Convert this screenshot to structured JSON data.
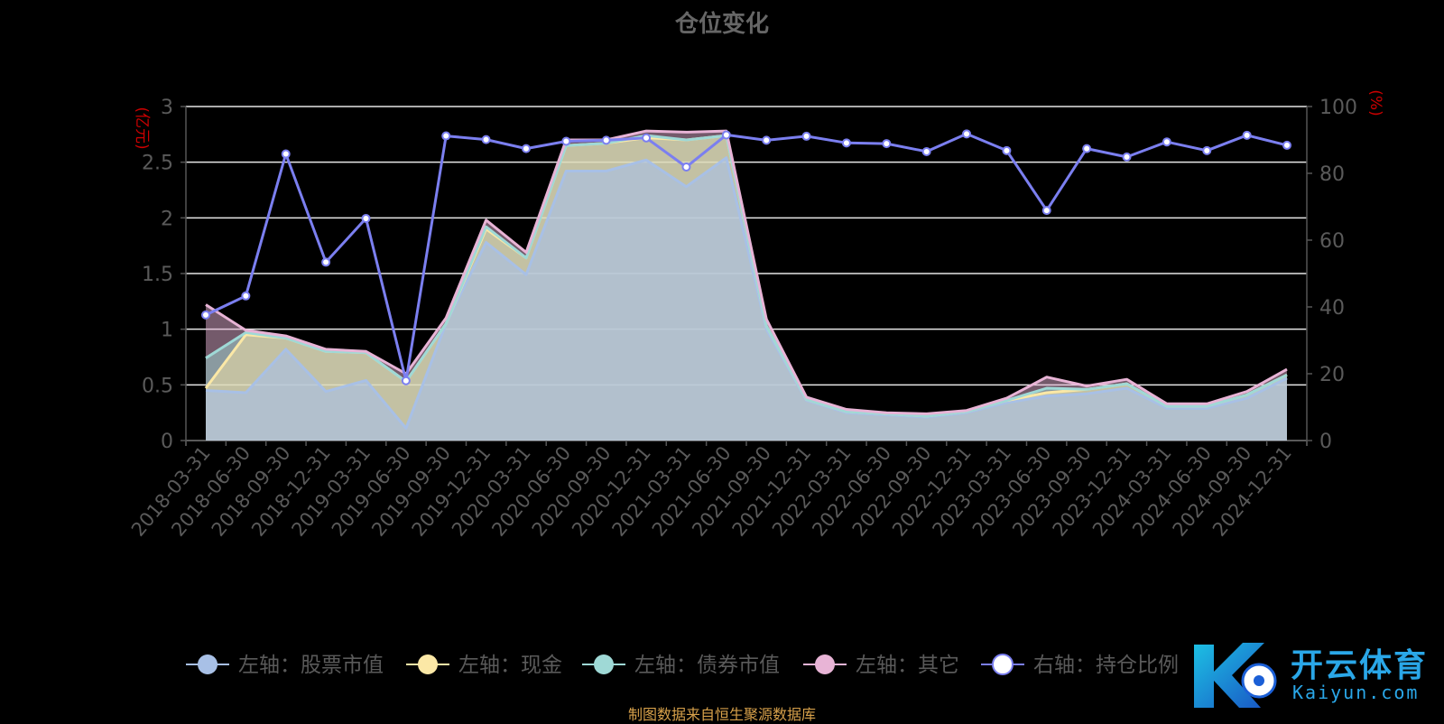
{
  "title": "仓位变化",
  "footer": "制图数据来自恒生聚源数据库",
  "watermark": {
    "cn": "开云体育",
    "en": "Kaiyun.com"
  },
  "colors": {
    "stock": "#a8c0e6",
    "cash": "#fbe8a6",
    "bond": "#9fd9d6",
    "other": "#e8b4d6",
    "ratio": "#7b7ff0",
    "axis_unit": "#cc0000",
    "axis_text": "#5a5a5a"
  },
  "chart_data": {
    "type": "area",
    "categories": [
      "2018-03-31",
      "2018-06-30",
      "2018-09-30",
      "2018-12-31",
      "2019-03-31",
      "2019-06-30",
      "2019-09-30",
      "2019-12-31",
      "2020-03-31",
      "2020-06-30",
      "2020-09-30",
      "2020-12-31",
      "2021-03-31",
      "2021-06-30",
      "2021-09-30",
      "2021-12-31",
      "2022-03-31",
      "2022-06-30",
      "2022-09-30",
      "2022-12-31",
      "2023-03-31",
      "2023-06-30",
      "2023-09-30",
      "2023-12-31",
      "2024-03-31",
      "2024-06-30",
      "2024-09-30",
      "2024-12-31"
    ],
    "left_axis": {
      "unit": "(亿元)",
      "min": 0,
      "max": 3,
      "ticks": [
        "0",
        "0.5",
        "1",
        "1.5",
        "2",
        "2.5",
        "3"
      ]
    },
    "right_axis": {
      "unit": "(%)",
      "min": 0,
      "max": 100,
      "ticks": [
        "0",
        "20",
        "40",
        "60",
        "80",
        "100"
      ]
    },
    "series": [
      {
        "name": "左轴：股票市值",
        "axis": "left",
        "stack": true,
        "values": [
          0.45,
          0.43,
          0.82,
          0.44,
          0.54,
          0.11,
          1.05,
          1.78,
          1.49,
          2.42,
          2.42,
          2.52,
          2.28,
          2.54,
          1.0,
          0.36,
          0.25,
          0.23,
          0.21,
          0.25,
          0.34,
          0.4,
          0.42,
          0.47,
          0.29,
          0.29,
          0.38,
          0.56
        ]
      },
      {
        "name": "左轴：现金",
        "axis": "left",
        "stack": true,
        "values": [
          0.02,
          0.52,
          0.1,
          0.36,
          0.25,
          0.42,
          0.0,
          0.12,
          0.15,
          0.23,
          0.25,
          0.2,
          0.42,
          0.2,
          0.03,
          0.01,
          0.01,
          0.01,
          0.01,
          0.01,
          0.02,
          0.03,
          0.04,
          0.04,
          0.02,
          0.02,
          0.03,
          0.03
        ]
      },
      {
        "name": "左轴：债券市值",
        "axis": "left",
        "stack": true,
        "values": [
          0.27,
          0.02,
          0.0,
          0.0,
          0.0,
          0.0,
          0.0,
          0.02,
          0.0,
          0.0,
          0.0,
          0.02,
          0.0,
          0.0,
          0.0,
          0.0,
          0.0,
          0.0,
          0.0,
          0.0,
          0.0,
          0.04,
          0.0,
          0.0,
          0.0,
          0.0,
          0.0,
          0.0
        ]
      },
      {
        "name": "左轴：其它",
        "axis": "left",
        "stack": true,
        "values": [
          0.48,
          0.02,
          0.02,
          0.02,
          0.01,
          0.07,
          0.05,
          0.06,
          0.05,
          0.05,
          0.03,
          0.04,
          0.07,
          0.04,
          0.06,
          0.02,
          0.02,
          0.01,
          0.02,
          0.01,
          0.02,
          0.1,
          0.03,
          0.04,
          0.02,
          0.02,
          0.03,
          0.05
        ]
      },
      {
        "name": "右轴：持仓比例",
        "axis": "right",
        "stack": false,
        "values": [
          37.6,
          43.3,
          85.8,
          53.4,
          66.5,
          17.9,
          91.2,
          90.1,
          87.4,
          89.6,
          89.9,
          90.6,
          81.9,
          91.5,
          89.9,
          91.1,
          89.1,
          88.9,
          86.5,
          91.8,
          86.8,
          68.9,
          87.4,
          84.9,
          89.4,
          86.8,
          91.4,
          88.4
        ]
      }
    ],
    "legend_position": "bottom"
  }
}
